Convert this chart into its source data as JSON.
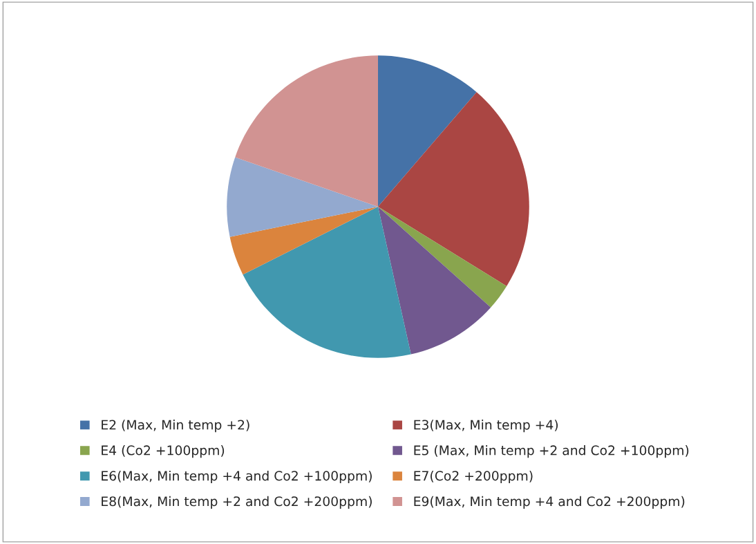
{
  "chart_data": {
    "type": "pie",
    "categories": [
      "E2 (Max, Min temp +2)",
      "E3(Max, Min temp +4)",
      "E4 (Co2 +100ppm)",
      "E5 (Max, Min temp +2 and Co2 +100ppm)",
      "E6(Max, Min temp +4 and Co2 +100ppm)",
      "E7(Co2 +200ppm)",
      "E8(Max, Min temp +2 and Co2 +200ppm)",
      "E9(Max, Min temp +4 and Co2 +200ppm)"
    ],
    "values": [
      11.3,
      22.5,
      2.8,
      9.9,
      21.1,
      4.2,
      8.5,
      19.7
    ],
    "colors": [
      "#4572a7",
      "#aa4643",
      "#89a54e",
      "#71588f",
      "#4198af",
      "#db843d",
      "#93a9cf",
      "#d19392"
    ],
    "legend": "bottom"
  }
}
